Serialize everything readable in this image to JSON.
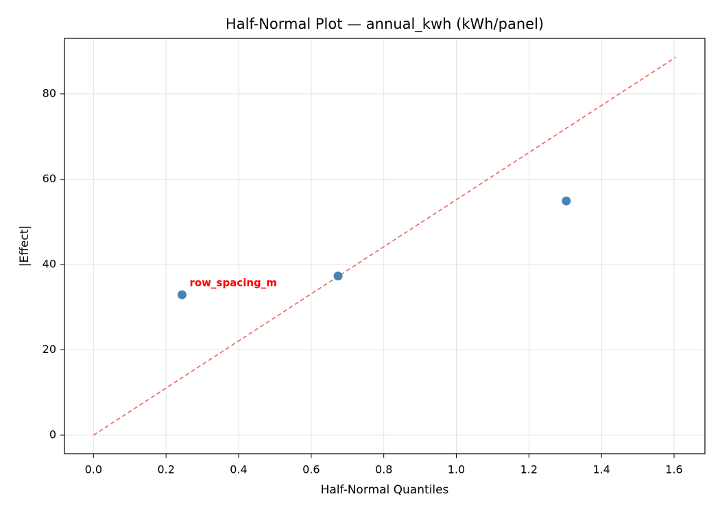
{
  "chart_data": {
    "type": "scatter",
    "title": "Half-Normal Plot — annual_kwh (kWh/panel)",
    "xlabel": "Half-Normal Quantiles",
    "ylabel": "|Effect|",
    "series": [
      {
        "color": "#4682b4",
        "x": [
          0.244,
          0.674,
          1.303
        ],
        "values": [
          32.9,
          37.3,
          54.9
        ]
      }
    ],
    "reference_line": {
      "color": "#f0605a",
      "x": [
        0,
        1.605
      ],
      "y": [
        0,
        88.6
      ]
    },
    "annotations": [
      {
        "text": "row_spacing_m",
        "x": 0.244,
        "y": 32.9,
        "color": "#ff0000"
      }
    ],
    "xlim": [
      -0.08,
      1.685
    ],
    "ylim": [
      -4.34,
      93.0
    ],
    "xticks": [
      {
        "value": 0,
        "label": "0.0"
      },
      0.2,
      0.4,
      0.6,
      0.8,
      {
        "value": 1,
        "label": "1.0"
      },
      1.2,
      1.4,
      1.6
    ],
    "yticks": [
      0,
      20,
      40,
      60,
      80
    ],
    "grid": true
  }
}
